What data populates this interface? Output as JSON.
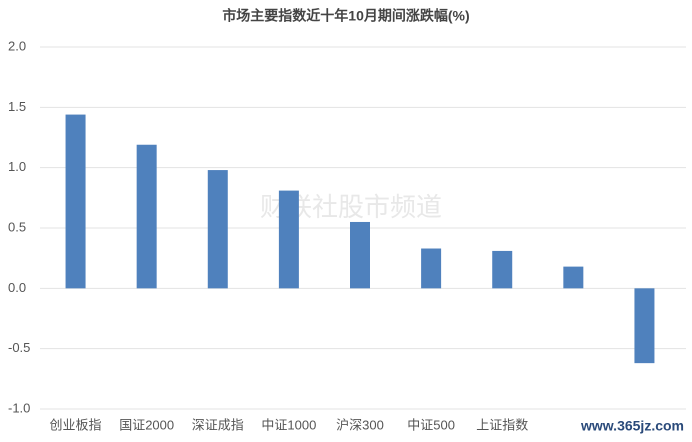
{
  "chart_data": {
    "type": "bar",
    "title": "市场主要指数近十年10月期间涨跌幅(%)",
    "categories": [
      "创业板指",
      "国证2000",
      "深证成指",
      "中证1000",
      "沪深300",
      "中证500",
      "上证指数",
      null,
      null
    ],
    "values": [
      1.44,
      1.19,
      0.98,
      0.81,
      0.55,
      0.33,
      0.31,
      0.18,
      -0.62
    ],
    "color": "#4f81bd",
    "ylim": [
      -1,
      2
    ],
    "yticks": [
      {
        "value": 2,
        "label": "2.0"
      },
      {
        "value": 1.5,
        "label": "1.5"
      },
      {
        "value": 1,
        "label": "1.0"
      },
      {
        "value": 0.5,
        "label": "0.5"
      },
      {
        "value": 0,
        "label": "0.0"
      },
      {
        "value": -0.5,
        "label": "-0.5"
      },
      {
        "value": -1,
        "label": "-1.0"
      }
    ],
    "grid": true,
    "watermarks": [
      "财联社股市频道",
      "www.365jz.com"
    ]
  }
}
